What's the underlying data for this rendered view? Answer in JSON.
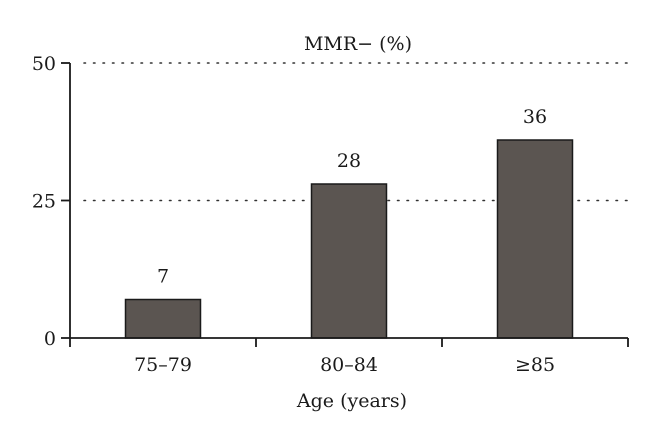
{
  "chart_data": {
    "type": "bar",
    "title": "MMR− (%)",
    "xlabel": "Age (years)",
    "ylabel": "",
    "categories": [
      "75–79",
      "80–84",
      "≥85"
    ],
    "values": [
      7,
      28,
      36
    ],
    "value_labels": [
      "7",
      "28",
      "36"
    ],
    "ylim": [
      0,
      50
    ],
    "yticks": [
      0,
      25,
      50
    ],
    "ytick_labels": [
      "0",
      "25",
      "50"
    ],
    "grid": "dotted horizontal at 25 and 50",
    "legend": "none",
    "colors": {
      "bar_fill": "#5b5551",
      "bar_stroke": "#1a1a1a",
      "axis": "#1a1a1a",
      "grid": "#333333"
    }
  }
}
